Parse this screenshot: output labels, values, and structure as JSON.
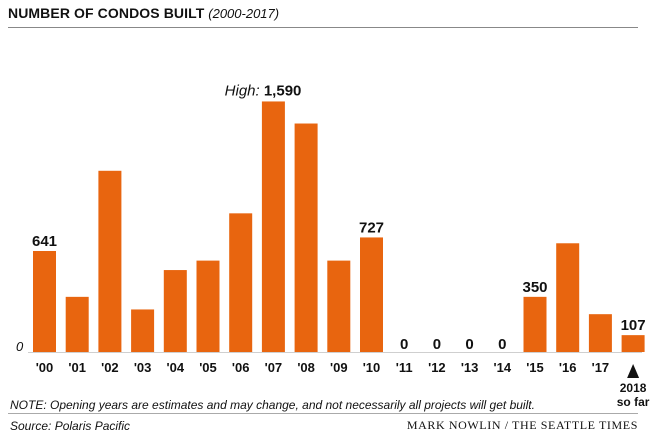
{
  "title": "NUMBER OF CONDOS BUILT",
  "subtitle": "(2000-2017)",
  "note": "NOTE: Opening years are estimates and may change, and not necessarily all projects will get built.",
  "source": "Source: Polaris Pacific",
  "credit": "MARK NOWLIN / THE SEATTLE TIMES",
  "colors": {
    "bar": "#E8650F",
    "text": "#111111"
  },
  "chart_data": {
    "type": "bar",
    "categories": [
      "'00",
      "'01",
      "'02",
      "'03",
      "'04",
      "'05",
      "'06",
      "'07",
      "'08",
      "'09",
      "'10",
      "'11",
      "'12",
      "'13",
      "'14",
      "'15",
      "'16",
      "'17",
      "2018 so far"
    ],
    "values": [
      641,
      350,
      1150,
      270,
      520,
      580,
      880,
      1590,
      1450,
      580,
      727,
      0,
      0,
      0,
      0,
      350,
      690,
      240,
      107
    ],
    "ylim": [
      0,
      1650
    ],
    "y_zero_label": "0",
    "data_labels": {
      "0": "641",
      "10": "727",
      "11": "0",
      "12": "0",
      "13": "0",
      "14": "0",
      "15": "350",
      "18": "107"
    },
    "high_annotation": {
      "index": 7,
      "prefix": "High:",
      "value": "1,590"
    },
    "current_year_marker": {
      "index": 18,
      "line1": "2018",
      "line2": "so far"
    }
  }
}
